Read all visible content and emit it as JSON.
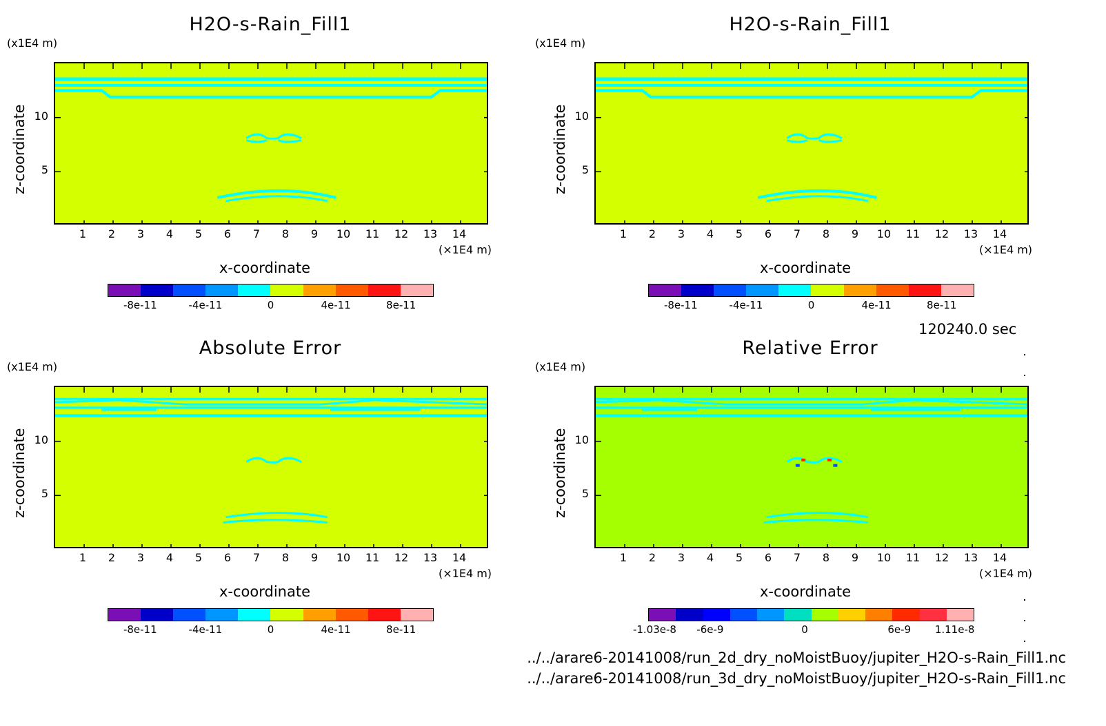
{
  "panels": [
    {
      "id": "p1",
      "title": "H2O-s-Rain_Fill1",
      "ylabel": "z-coordinate",
      "xlabel": "x-coordinate",
      "xunit": "(×1E4 m)",
      "yunit": "(x1E4 m)",
      "background": "#d4ff00",
      "feature": "#00ffff",
      "variant": "field",
      "colorbar": {
        "colors": [
          "#7b0fb6",
          "#0000c8",
          "#0050ff",
          "#0096ff",
          "#00ffff",
          "#d4ff00",
          "#ffa000",
          "#ff5a00",
          "#ff1414",
          "#ffb0b0"
        ],
        "labels": [
          "-8e-11",
          "-4e-11",
          "0",
          "4e-11",
          "8e-11"
        ]
      }
    },
    {
      "id": "p2",
      "title": "H2O-s-Rain_Fill1",
      "ylabel": "z-coordinate",
      "xlabel": "x-coordinate",
      "xunit": "(×1E4 m)",
      "yunit": "(x1E4 m)",
      "background": "#d4ff00",
      "feature": "#00ffff",
      "variant": "field",
      "colorbar": {
        "colors": [
          "#7b0fb6",
          "#0000c8",
          "#0050ff",
          "#0096ff",
          "#00ffff",
          "#d4ff00",
          "#ffa000",
          "#ff5a00",
          "#ff1414",
          "#ffb0b0"
        ],
        "labels": [
          "-8e-11",
          "-4e-11",
          "0",
          "4e-11",
          "8e-11"
        ]
      }
    },
    {
      "id": "p3",
      "title": "Absolute Error",
      "ylabel": "z-coordinate",
      "xlabel": "x-coordinate",
      "xunit": "(×1E4 m)",
      "yunit": "(x1E4 m)",
      "background": "#d4ff00",
      "feature": "#00ffff",
      "variant": "error",
      "colorbar": {
        "colors": [
          "#7b0fb6",
          "#0000c8",
          "#0050ff",
          "#0096ff",
          "#00ffff",
          "#d4ff00",
          "#ffa000",
          "#ff5a00",
          "#ff1414",
          "#ffb0b0"
        ],
        "labels": [
          "-8e-11",
          "-4e-11",
          "0",
          "4e-11",
          "8e-11"
        ]
      }
    },
    {
      "id": "p4",
      "title": "Relative Error",
      "ylabel": "z-coordinate",
      "xlabel": "x-coordinate",
      "xunit": "(×1E4 m)",
      "yunit": "(x1E4 m)",
      "background": "#a6ff00",
      "feature": "#00ffff",
      "variant": "relerror",
      "colorbar": {
        "colors": [
          "#7b0fb6",
          "#0000c8",
          "#0000ff",
          "#0050ff",
          "#0096ff",
          "#00e0c0",
          "#a6ff00",
          "#ffd000",
          "#ff8000",
          "#ff2a00",
          "#ff3040",
          "#ffb0b0"
        ],
        "labels": [
          "-1.03e-8",
          "-6e-9",
          "0",
          "6e-9",
          "1.11e-8"
        ]
      }
    }
  ],
  "x_ticks": [
    "1",
    "2",
    "3",
    "4",
    "5",
    "6",
    "7",
    "8",
    "9",
    "10",
    "11",
    "12",
    "13",
    "14"
  ],
  "y_ticks": [
    "5",
    "10"
  ],
  "time_label": "120240.0 sec",
  "files": [
    "../../arare6-20141008/run_2d_dry_noMoistBuoy/jupiter_H2O-s-Rain_Fill1.nc",
    "../../arare6-20141008/run_3d_dry_noMoistBuoy/jupiter_H2O-s-Rain_Fill1.nc"
  ],
  "chart_data": [
    {
      "type": "heatmap",
      "title": "H2O-s-Rain_Fill1",
      "xlabel": "x-coordinate",
      "ylabel": "z-coordinate",
      "xlim": [
        0,
        15
      ],
      "ylim": [
        0,
        15
      ],
      "colorbar_ticks": [
        "-8e-11",
        "-4e-11",
        "0",
        "4e-11",
        "8e-11"
      ]
    },
    {
      "type": "heatmap",
      "title": "H2O-s-Rain_Fill1",
      "xlabel": "x-coordinate",
      "ylabel": "z-coordinate",
      "xlim": [
        0,
        15
      ],
      "ylim": [
        0,
        15
      ],
      "colorbar_ticks": [
        "-8e-11",
        "-4e-11",
        "0",
        "4e-11",
        "8e-11"
      ]
    },
    {
      "type": "heatmap",
      "title": "Absolute Error",
      "xlabel": "x-coordinate",
      "ylabel": "z-coordinate",
      "xlim": [
        0,
        15
      ],
      "ylim": [
        0,
        15
      ],
      "colorbar_ticks": [
        "-8e-11",
        "-4e-11",
        "0",
        "4e-11",
        "8e-11"
      ]
    },
    {
      "type": "heatmap",
      "title": "Relative Error",
      "xlabel": "x-coordinate",
      "ylabel": "z-coordinate",
      "xlim": [
        0,
        15
      ],
      "ylim": [
        0,
        15
      ],
      "colorbar_ticks": [
        "-1.03e-8",
        "-6e-9",
        "0",
        "6e-9",
        "1.11e-8"
      ]
    }
  ]
}
